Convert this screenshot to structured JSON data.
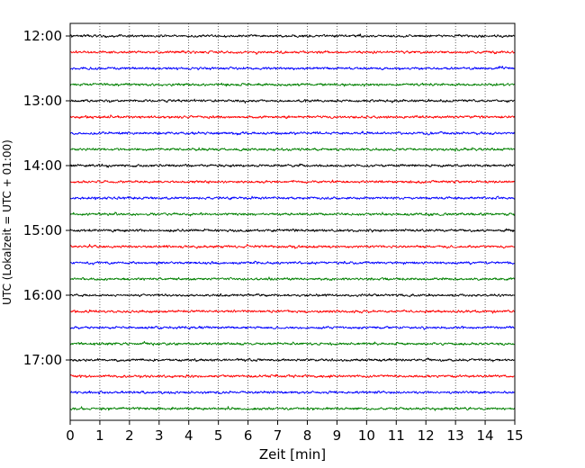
{
  "chart_data": {
    "type": "line",
    "title": "",
    "xlabel": "Zeit  [min]",
    "ylabel": "UTC (Lokalzeit = UTC + 01:00)",
    "xlim": [
      0,
      15
    ],
    "x_ticks": [
      0,
      1,
      2,
      3,
      4,
      5,
      6,
      7,
      8,
      9,
      10,
      11,
      12,
      13,
      14,
      15
    ],
    "y_tick_labels": [
      "12:00",
      "13:00",
      "14:00",
      "15:00",
      "16:00",
      "17:00"
    ],
    "row_interval_minutes": 15,
    "grid": "vertical dotted lines at each minute",
    "colors": [
      "#000000",
      "#ff0000",
      "#0000ff",
      "#008000"
    ],
    "rows": [
      {
        "start": "12:00",
        "color": "#000000"
      },
      {
        "start": "12:15",
        "color": "#ff0000"
      },
      {
        "start": "12:30",
        "color": "#0000ff"
      },
      {
        "start": "12:45",
        "color": "#008000"
      },
      {
        "start": "13:00",
        "color": "#000000"
      },
      {
        "start": "13:15",
        "color": "#ff0000"
      },
      {
        "start": "13:30",
        "color": "#0000ff"
      },
      {
        "start": "13:45",
        "color": "#008000"
      },
      {
        "start": "14:00",
        "color": "#000000"
      },
      {
        "start": "14:15",
        "color": "#ff0000"
      },
      {
        "start": "14:30",
        "color": "#0000ff"
      },
      {
        "start": "14:45",
        "color": "#008000"
      },
      {
        "start": "15:00",
        "color": "#000000"
      },
      {
        "start": "15:15",
        "color": "#ff0000"
      },
      {
        "start": "15:30",
        "color": "#0000ff"
      },
      {
        "start": "15:45",
        "color": "#008000"
      },
      {
        "start": "16:00",
        "color": "#000000"
      },
      {
        "start": "16:15",
        "color": "#ff0000"
      },
      {
        "start": "16:30",
        "color": "#0000ff"
      },
      {
        "start": "16:45",
        "color": "#008000"
      },
      {
        "start": "17:00",
        "color": "#000000"
      },
      {
        "start": "17:15",
        "color": "#ff0000"
      },
      {
        "start": "17:30",
        "color": "#0000ff"
      },
      {
        "start": "17:45",
        "color": "#008000"
      }
    ]
  }
}
